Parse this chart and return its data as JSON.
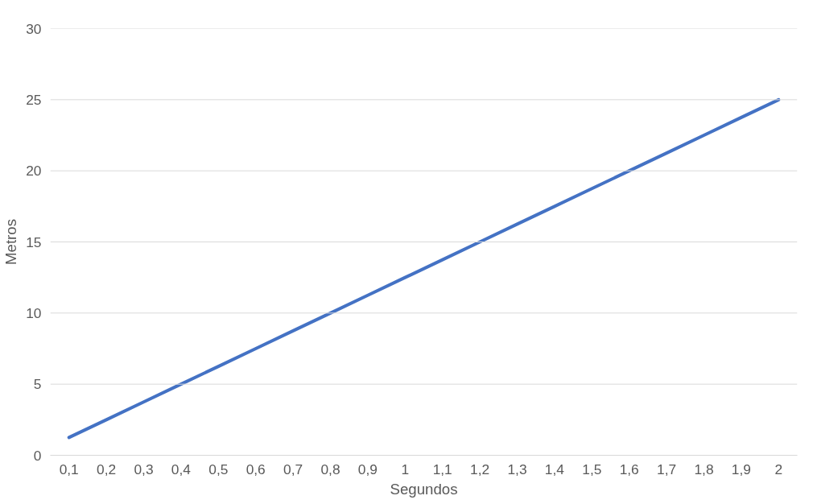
{
  "chart_data": {
    "type": "line",
    "xlabel": "Segundos",
    "ylabel": "Metros",
    "categories": [
      "0,1",
      "0,2",
      "0,3",
      "0,4",
      "0,5",
      "0,6",
      "0,7",
      "0,8",
      "0,9",
      "1",
      "1,1",
      "1,2",
      "1,3",
      "1,4",
      "1,5",
      "1,6",
      "1,7",
      "1,8",
      "1,9",
      "2"
    ],
    "series": [
      {
        "color": "#4472c4",
        "values": [
          1.25,
          2.5,
          3.75,
          5,
          6.25,
          7.5,
          8.75,
          10,
          11.25,
          12.5,
          13.75,
          15,
          16.25,
          17.5,
          18.75,
          20,
          21.25,
          22.5,
          23.75,
          25
        ]
      }
    ],
    "ylim": [
      0,
      30
    ],
    "yticks": [
      0,
      5,
      10,
      15,
      20,
      25,
      30
    ],
    "grid": "y",
    "marker": "none",
    "line_style": "solid"
  }
}
